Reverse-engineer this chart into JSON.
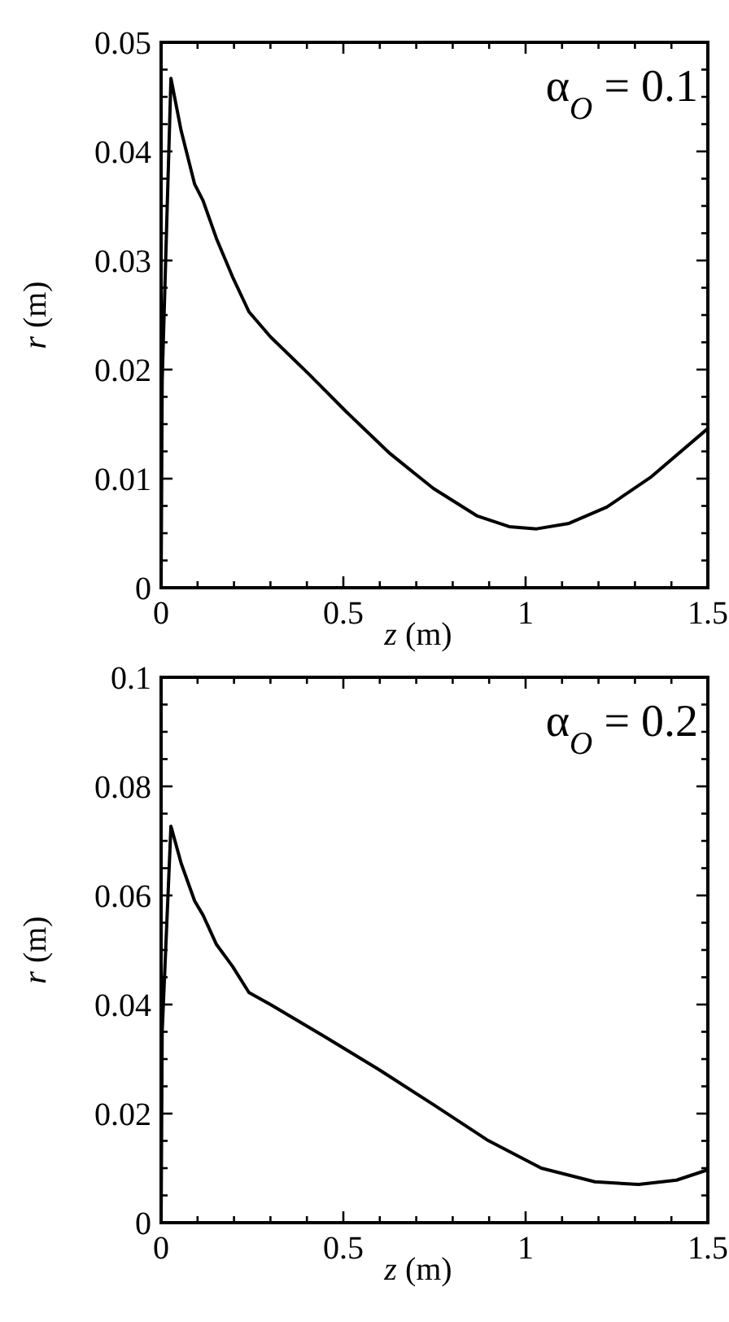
{
  "chart_data": [
    {
      "type": "line",
      "xlabel": "z (m)",
      "ylabel": "r (m)",
      "annotations": [
        "α$_{O}$ = 0.1"
      ],
      "xlim": [
        0,
        1.5
      ],
      "ylim": [
        0,
        0.05
      ],
      "xticks": [
        0,
        {
          "value": 0.1,
          "label": null
        },
        {
          "value": 0.2,
          "label": null
        },
        {
          "value": 0.3,
          "label": null
        },
        {
          "value": 0.4,
          "label": null
        },
        0.5,
        {
          "value": 0.6,
          "label": null
        },
        {
          "value": 0.7,
          "label": null
        },
        {
          "value": 0.8,
          "label": null
        },
        {
          "value": 0.9,
          "label": null
        },
        1,
        {
          "value": 1.1,
          "label": null
        },
        {
          "value": 1.2,
          "label": null
        },
        {
          "value": 1.3,
          "label": null
        },
        {
          "value": 1.4,
          "label": null
        },
        1.5
      ],
      "yticks": [
        0,
        {
          "value": 0.0025,
          "label": null
        },
        {
          "value": 0.005,
          "label": null
        },
        {
          "value": 0.0075,
          "label": null
        },
        0.01,
        {
          "value": 0.0125,
          "label": null
        },
        {
          "value": 0.015,
          "label": null
        },
        {
          "value": 0.0175,
          "label": null
        },
        0.02,
        {
          "value": 0.0225,
          "label": null
        },
        {
          "value": 0.025,
          "label": null
        },
        {
          "value": 0.0275,
          "label": null
        },
        0.03,
        {
          "value": 0.0325,
          "label": null
        },
        {
          "value": 0.035,
          "label": null
        },
        {
          "value": 0.0375,
          "label": null
        },
        0.04,
        {
          "value": 0.0425,
          "label": null
        },
        {
          "value": 0.045,
          "label": null
        },
        {
          "value": 0.0475,
          "label": null
        },
        0.05
      ],
      "grid": false,
      "marker": "none",
      "line_style": "solid",
      "series": [
        {
          "color": "#000000",
          "x": [
            0,
            0.003,
            0.027,
            0.055,
            0.092,
            0.115,
            0.152,
            0.196,
            0.241,
            0.3,
            0.405,
            0.509,
            0.628,
            0.747,
            0.866,
            0.955,
            1.03,
            1.119,
            1.223,
            1.342,
            1.5
          ],
          "values": [
            0,
            0.019,
            0.0467,
            0.0419,
            0.037,
            0.0355,
            0.032,
            0.0285,
            0.0253,
            0.023,
            0.0196,
            0.0161,
            0.0123,
            0.0091,
            0.0066,
            0.0056,
            0.0054,
            0.0059,
            0.0074,
            0.0101,
            0.0146
          ]
        }
      ]
    },
    {
      "type": "line",
      "xlabel": "z (m)",
      "ylabel": "r (m)",
      "annotations": [
        "α$_{O}$ = 0.2"
      ],
      "xlim": [
        0,
        1.5
      ],
      "ylim": [
        0,
        0.1
      ],
      "xticks": [
        0,
        {
          "value": 0.1,
          "label": null
        },
        {
          "value": 0.2,
          "label": null
        },
        {
          "value": 0.3,
          "label": null
        },
        {
          "value": 0.4,
          "label": null
        },
        0.5,
        {
          "value": 0.6,
          "label": null
        },
        {
          "value": 0.7,
          "label": null
        },
        {
          "value": 0.8,
          "label": null
        },
        {
          "value": 0.9,
          "label": null
        },
        1,
        {
          "value": 1.1,
          "label": null
        },
        {
          "value": 1.2,
          "label": null
        },
        {
          "value": 1.3,
          "label": null
        },
        {
          "value": 1.4,
          "label": null
        },
        1.5
      ],
      "yticks": [
        0,
        {
          "value": 0.005,
          "label": null
        },
        {
          "value": 0.01,
          "label": null
        },
        {
          "value": 0.015,
          "label": null
        },
        0.02,
        {
          "value": 0.025,
          "label": null
        },
        {
          "value": 0.03,
          "label": null
        },
        {
          "value": 0.035,
          "label": null
        },
        0.04,
        {
          "value": 0.045,
          "label": null
        },
        {
          "value": 0.05,
          "label": null
        },
        {
          "value": 0.055,
          "label": null
        },
        0.06,
        {
          "value": 0.065,
          "label": null
        },
        {
          "value": 0.07,
          "label": null
        },
        {
          "value": 0.075,
          "label": null
        },
        0.08,
        {
          "value": 0.085,
          "label": null
        },
        {
          "value": 0.09,
          "label": null
        },
        {
          "value": 0.095,
          "label": null
        },
        0.1
      ],
      "grid": false,
      "marker": "none",
      "line_style": "solid",
      "series": [
        {
          "color": "#000000",
          "x": [
            0,
            0.003,
            0.027,
            0.055,
            0.092,
            0.115,
            0.152,
            0.196,
            0.241,
            0.3,
            0.449,
            0.597,
            0.746,
            0.894,
            1.043,
            1.19,
            1.31,
            1.414,
            1.5
          ],
          "values": [
            0,
            0.035,
            0.0727,
            0.0659,
            0.059,
            0.0564,
            0.051,
            0.047,
            0.0422,
            0.04,
            0.0341,
            0.0281,
            0.0217,
            0.0152,
            0.01,
            0.0075,
            0.007,
            0.0078,
            0.0097
          ]
        }
      ]
    }
  ]
}
